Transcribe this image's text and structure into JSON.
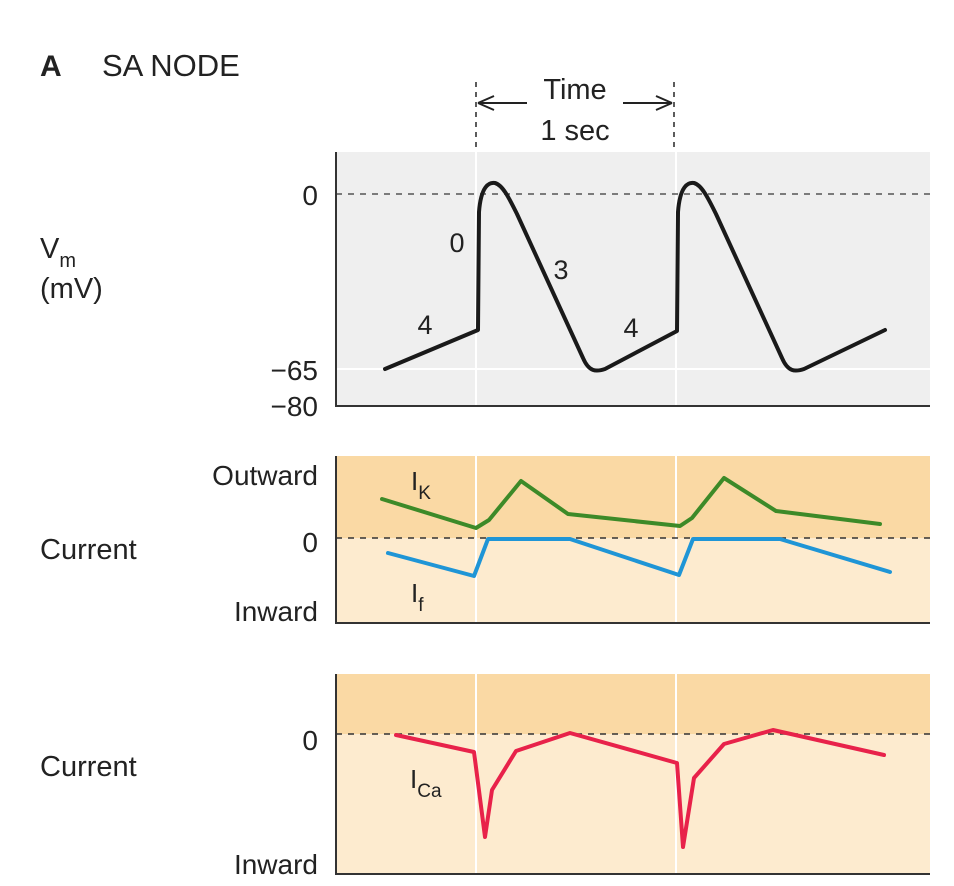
{
  "figure": {
    "panel_letter": "A",
    "panel_title": "SA NODE",
    "time_label": "Time",
    "time_value": "1 sec"
  },
  "vm_panel": {
    "ylabel_main": "V",
    "ylabel_sub": "m",
    "ylabel_unit": "(mV)",
    "ticks": [
      "0",
      "−65",
      "−80"
    ],
    "phase_labels": [
      "4",
      "0",
      "3",
      "4"
    ],
    "trace_color": "#1a1a1a"
  },
  "current_panel_1": {
    "ylabel": "Current",
    "top_label": "Outward",
    "zero_label": "0",
    "bottom_label": "Inward",
    "ik_main": "I",
    "ik_sub": "K",
    "if_main": "I",
    "if_sub": "f",
    "ik_color": "#3d8a28",
    "if_color": "#1f95d6"
  },
  "current_panel_2": {
    "ylabel": "Current",
    "zero_label": "0",
    "bottom_label": "Inward",
    "ica_main": "I",
    "ica_sub": "Ca",
    "ica_color": "#e8224a"
  },
  "colors": {
    "vm_background": "#efefef",
    "outward_band": "#fad9a4",
    "inward_band": "#fdebcf"
  }
}
